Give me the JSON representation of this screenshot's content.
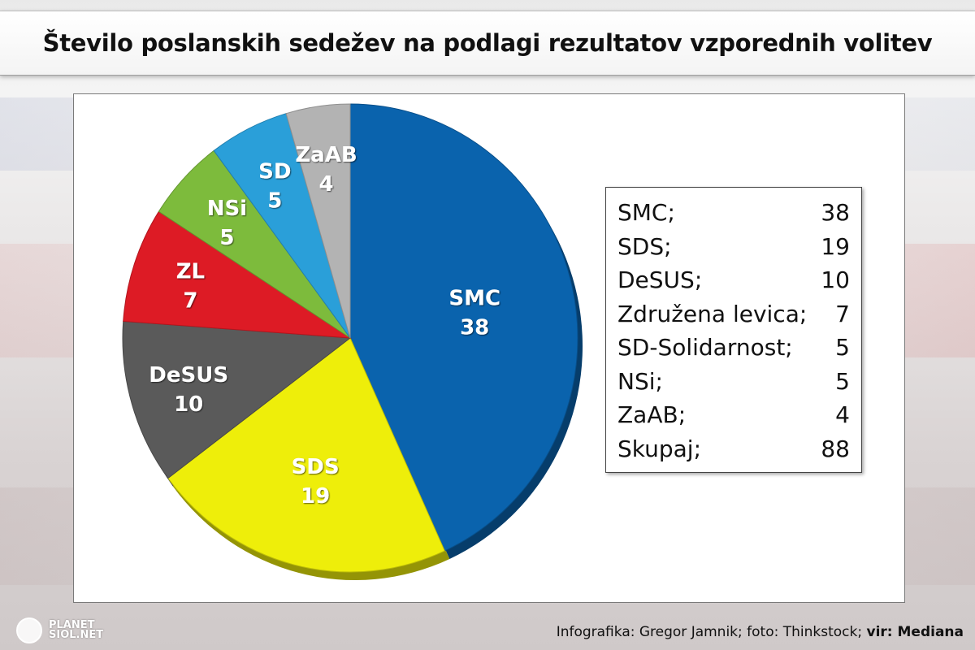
{
  "title": "Število poslanskih sedežev na podlagi rezultatov vzporednih volitev",
  "chart_data": {
    "type": "pie",
    "slices": [
      {
        "label": "SMC",
        "value": 38,
        "color": "#0a63ad"
      },
      {
        "label": "SDS",
        "value": 19,
        "color": "#eeee0a"
      },
      {
        "label": "DeSUS",
        "value": 10,
        "color": "#5a5a5a"
      },
      {
        "label": "ZL",
        "value": 7,
        "color": "#dd1b25"
      },
      {
        "label": "NSi",
        "value": 5,
        "color": "#7dbb3c"
      },
      {
        "label": "SD",
        "value": 5,
        "color": "#2a9fd9"
      },
      {
        "label": "ZaAB",
        "value": 4,
        "color": "#b3b3b3"
      }
    ]
  },
  "legend": {
    "rows": [
      {
        "label": "SMC;",
        "value": "38"
      },
      {
        "label": "SDS;",
        "value": "19"
      },
      {
        "label": "DeSUS;",
        "value": "10"
      },
      {
        "label": "Združena levica;",
        "value": "7"
      },
      {
        "label": "SD-Solidarnost;",
        "value": "5"
      },
      {
        "label": "NSi;",
        "value": "5"
      },
      {
        "label": "ZaAB;",
        "value": "4"
      },
      {
        "label": "Skupaj;",
        "value": "88"
      }
    ]
  },
  "footer": {
    "credit": "Infografika: Gregor Jamnik; foto: Thinkstock; ",
    "source": "vir: Mediana"
  },
  "logo": {
    "line1": "PLANET",
    "line2": "SIOL.NET"
  }
}
